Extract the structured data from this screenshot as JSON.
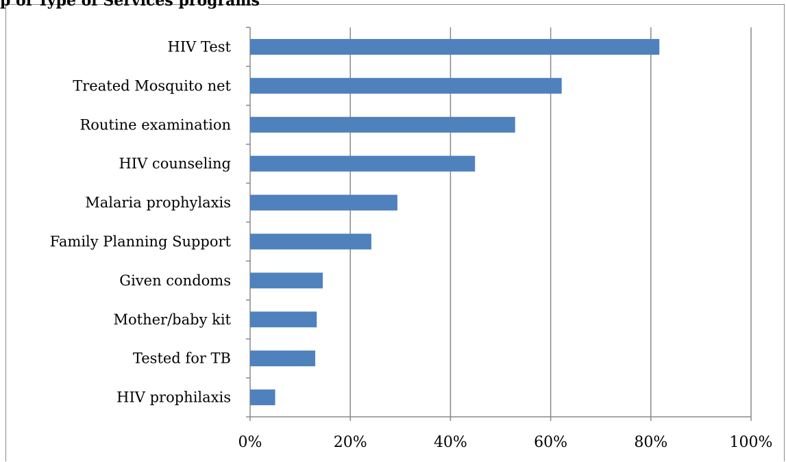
{
  "header": {
    "title": "p of Type of Services programs"
  },
  "chart_data": {
    "type": "bar",
    "orientation": "horizontal",
    "title": "p of Type of Services programs",
    "xlabel": "",
    "ylabel": "",
    "categories": [
      "HIV Test",
      "Treated Mosquito net",
      "Routine examination",
      "HIV counseling",
      "Malaria prophylaxis",
      "Family Planning Support",
      "Given condoms",
      "Mother/baby kit",
      "Tested for TB",
      "HIV prophilaxis"
    ],
    "values": [
      81.7,
      62.2,
      52.9,
      44.9,
      29.4,
      24.2,
      14.5,
      13.3,
      13.0,
      5.0
    ],
    "xlim": [
      0,
      100
    ],
    "xticks": [
      "0%",
      "20%",
      "40%",
      "60%",
      "80%",
      "100%"
    ],
    "grid": "vertical",
    "legend": "none",
    "bar_color": "#4f81bd",
    "grid_color": "#888888"
  }
}
